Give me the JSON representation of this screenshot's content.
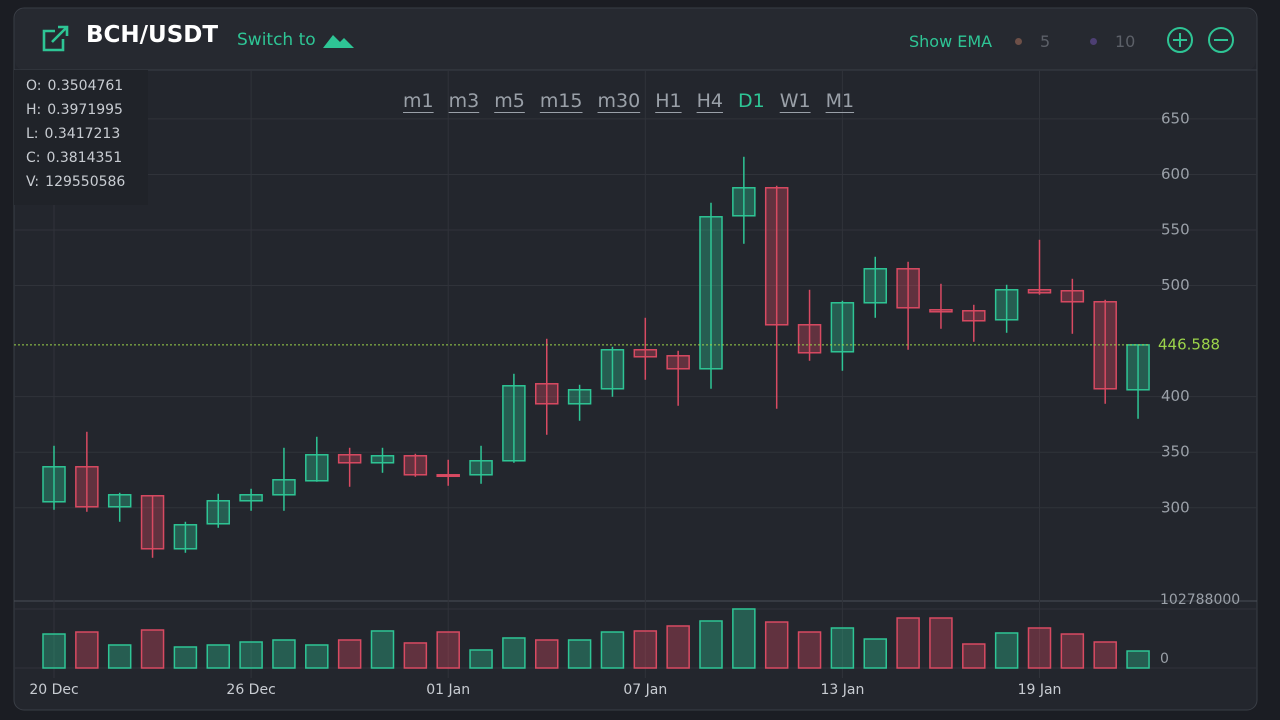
{
  "header": {
    "pair": "BCH/USDT",
    "switch_label": "Switch to",
    "ema_label": "Show EMA",
    "ema": [
      {
        "period": 5,
        "color": "#6e5048"
      },
      {
        "period": 10,
        "color": "#4d3f73"
      }
    ]
  },
  "ohlc_info": [
    {
      "label": "O:",
      "value": 0.3504761
    },
    {
      "label": "H:",
      "value": 0.3971995
    },
    {
      "label": "L:",
      "value": 0.3417213
    },
    {
      "label": "C:",
      "value": 0.3814351
    },
    {
      "label": "V:",
      "value": 129550586
    }
  ],
  "timeframes": {
    "items": [
      "m1",
      "m3",
      "m5",
      "m15",
      "m30",
      "H1",
      "H4",
      "D1",
      "W1",
      "M1"
    ],
    "active": "D1"
  },
  "chart_data": [
    {
      "type": "candlestick",
      "up_color": "#2ec595",
      "down_color": "#d84a62",
      "categories": [
        "20 Dec",
        null,
        null,
        null,
        null,
        null,
        "26 Dec",
        null,
        null,
        null,
        null,
        null,
        "01 Jan",
        null,
        null,
        null,
        null,
        null,
        "07 Jan",
        null,
        null,
        null,
        null,
        null,
        "13 Jan",
        null,
        null,
        null,
        null,
        null,
        "19 Jan",
        null,
        null,
        null
      ],
      "open": [
        305.4,
        336.9,
        300.9,
        310.8,
        263.1,
        285.6,
        306.3,
        311.7,
        324.3,
        347.7,
        340.5,
        346.8,
        329.7,
        329.7,
        342.3,
        411.6,
        393.6,
        407.1,
        442.2,
        436.8,
        425.1,
        562.8,
        588.0,
        464.7,
        440.4,
        484.5,
        515.1,
        478.2,
        477.3,
        469.2,
        496.2,
        495.3,
        485.4,
        406.2
      ],
      "high": [
        355.8,
        368.4,
        313.5,
        310.8,
        287.4,
        312.6,
        317.1,
        354.0,
        363.9,
        354.0,
        354.0,
        348.6,
        343.2,
        355.8,
        420.6,
        452.1,
        410.7,
        444.9,
        471.0,
        441.3,
        574.5,
        615.9,
        589.8,
        496.2,
        486.3,
        525.9,
        521.4,
        501.6,
        482.7,
        500.7,
        541.2,
        506.1,
        487.2,
        446.6
      ],
      "low": [
        298.2,
        296.4,
        287.4,
        255.0,
        259.5,
        282.0,
        297.3,
        297.3,
        323.4,
        318.9,
        331.5,
        327.9,
        319.8,
        321.6,
        340.5,
        365.7,
        378.3,
        399.9,
        415.2,
        391.8,
        407.1,
        537.6,
        389.1,
        432.3,
        423.3,
        471.0,
        442.2,
        461.1,
        449.4,
        457.5,
        491.7,
        456.6,
        393.6,
        380.1
      ],
      "close": [
        336.9,
        300.9,
        311.7,
        263.1,
        284.7,
        306.3,
        311.7,
        325.2,
        347.7,
        340.5,
        346.8,
        329.7,
        328.8,
        342.3,
        409.8,
        393.6,
        406.2,
        442.2,
        435.9,
        425.1,
        561.9,
        588.0,
        464.7,
        439.5,
        484.5,
        515.1,
        480.0,
        476.4,
        468.3,
        496.2,
        493.5,
        485.4,
        407.1,
        446.588
      ],
      "current_price": 446.588,
      "current_color": "#9bd34a",
      "ylim": [
        217,
        694
      ],
      "yticks": [
        300,
        350,
        400,
        500,
        550,
        600,
        650
      ],
      "grid": true
    },
    {
      "type": "volume",
      "values": [
        59200000,
        62700000,
        40100000,
        66200000,
        36600000,
        40100000,
        45300000,
        48800000,
        40100000,
        48800000,
        64500000,
        43600000,
        62700000,
        31400000,
        52300000,
        48800000,
        48800000,
        62700000,
        64500000,
        73200000,
        81900000,
        102800000,
        80100000,
        62700000,
        69700000,
        50500000,
        87100000,
        87100000,
        41800000,
        61000000,
        69700000,
        59200000,
        45300000,
        29600000
      ],
      "ylim": [
        -17400000,
        116700000
      ],
      "yticks": [
        0,
        102788000
      ]
    }
  ]
}
